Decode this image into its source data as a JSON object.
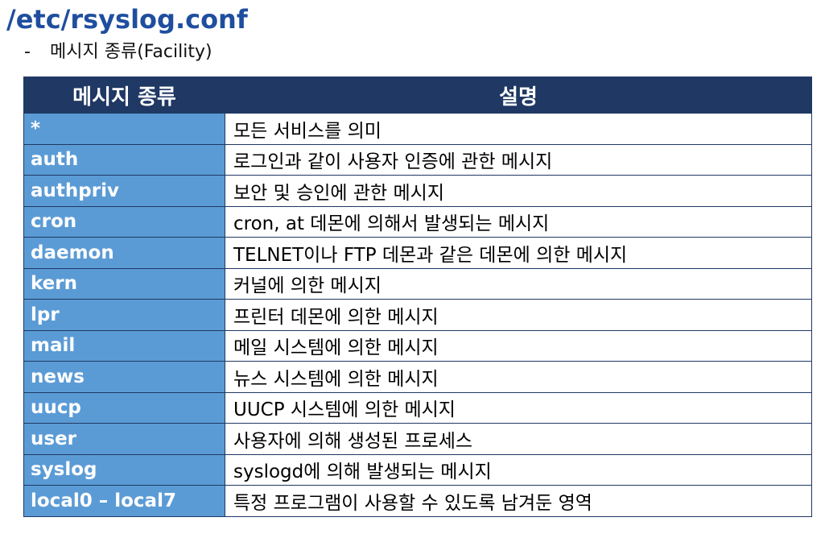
{
  "title": "/etc/rsyslog.conf",
  "subtitle": {
    "bullet": "-",
    "text": "메시지 종류(Facility)"
  },
  "table": {
    "headers": [
      "메시지 종류",
      "설명"
    ],
    "rows": [
      {
        "facility": "*",
        "description": "모든 서비스를 의미"
      },
      {
        "facility": "auth",
        "description": "로그인과 같이 사용자 인증에 관한 메시지"
      },
      {
        "facility": "authpriv",
        "description": "보안 및 승인에 관한 메시지"
      },
      {
        "facility": "cron",
        "description": "cron, at 데몬에 의해서 발생되는 메시지"
      },
      {
        "facility": "daemon",
        "description": "TELNET이나 FTP 데몬과 같은 데몬에 의한 메시지"
      },
      {
        "facility": "kern",
        "description": "커널에 의한 메시지"
      },
      {
        "facility": "lpr",
        "description": "프린터 데몬에 의한 메시지"
      },
      {
        "facility": "mail",
        "description": "메일 시스템에 의한 메시지"
      },
      {
        "facility": "news",
        "description": "뉴스 시스템에 의한 메시지"
      },
      {
        "facility": "uucp",
        "description": "UUCP 시스템에 의한 메시지"
      },
      {
        "facility": "user",
        "description": "사용자에 의해 생성된 프로세스"
      },
      {
        "facility": "syslog",
        "description": "syslogd에 의해 발생되는 메시지"
      },
      {
        "facility": "local0 – local7",
        "description": "특정 프로그램이 사용할 수 있도록 남겨둔 영역"
      }
    ]
  },
  "colors": {
    "title": "#1f4e9e",
    "header_bg": "#1f3864",
    "key_cell_bg": "#5b9bd5",
    "border": "#1f3864"
  }
}
